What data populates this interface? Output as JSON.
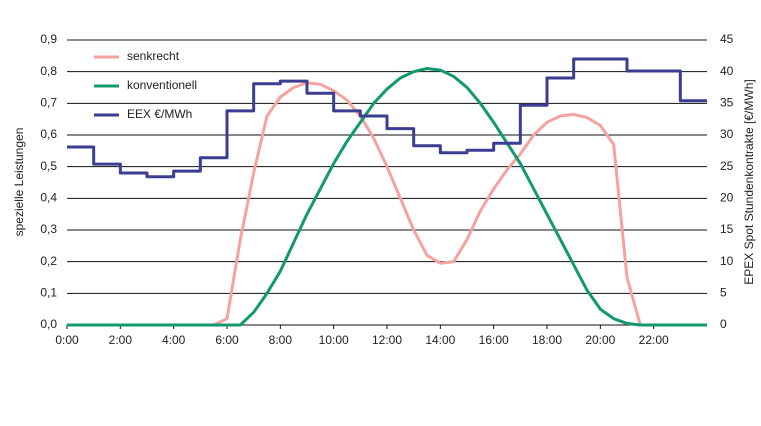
{
  "chart_data": {
    "type": "line",
    "ylabel": "spezielle Leistungen",
    "y2label": "EPEX Spot Stundenkontrakte [€/MWh]",
    "xlim": [
      0,
      24
    ],
    "xticks": [
      {
        "value": 0,
        "label": "0:00"
      },
      {
        "value": 2,
        "label": "2:00"
      },
      {
        "value": 4,
        "label": "4:00"
      },
      {
        "value": 6,
        "label": "6:00"
      },
      {
        "value": 8,
        "label": "8:00"
      },
      {
        "value": 10,
        "label": "10:00"
      },
      {
        "value": 12,
        "label": "12:00"
      },
      {
        "value": 14,
        "label": "14:00"
      },
      {
        "value": 16,
        "label": "16:00"
      },
      {
        "value": 18,
        "label": "18:00"
      },
      {
        "value": 20,
        "label": "20:00"
      },
      {
        "value": 22,
        "label": "22:00"
      }
    ],
    "ylim": [
      0,
      0.9
    ],
    "yticks": [
      {
        "value": 0,
        "label": "0,0"
      },
      {
        "value": 0.1,
        "label": "0,1"
      },
      {
        "value": 0.2,
        "label": "0,2"
      },
      {
        "value": 0.3,
        "label": "0,3"
      },
      {
        "value": 0.4,
        "label": "0,4"
      },
      {
        "value": 0.5,
        "label": "0,5"
      },
      {
        "value": 0.6,
        "label": "0,6"
      },
      {
        "value": 0.7,
        "label": "0,7"
      },
      {
        "value": 0.8,
        "label": "0,8"
      },
      {
        "value": 0.9,
        "label": "0,9"
      }
    ],
    "y2lim": [
      0,
      45
    ],
    "y2ticks": [
      0,
      5,
      10,
      15,
      20,
      25,
      30,
      35,
      40,
      45
    ],
    "grid": true,
    "legend": "upper left",
    "series": [
      {
        "name": "senkrecht",
        "color": "#f4a3a0",
        "x": [
          0,
          0.5,
          1,
          1.5,
          2,
          2.5,
          3,
          3.5,
          4,
          4.5,
          5,
          5.5,
          6,
          6.5,
          7,
          7.5,
          8,
          8.5,
          9,
          9.5,
          10,
          10.5,
          11,
          11.5,
          12,
          12.5,
          13,
          13.5,
          14,
          14.5,
          15,
          15.5,
          16,
          16.5,
          17,
          17.5,
          18,
          18.5,
          19,
          19.5,
          20,
          20.5,
          21,
          21.5,
          22,
          22.5,
          23,
          23.5,
          24
        ],
        "values": [
          0,
          0,
          0,
          0,
          0,
          0,
          0,
          0,
          0,
          0,
          0,
          0,
          0.02,
          0.27,
          0.48,
          0.66,
          0.72,
          0.75,
          0.765,
          0.76,
          0.74,
          0.71,
          0.66,
          0.59,
          0.5,
          0.4,
          0.3,
          0.22,
          0.195,
          0.2,
          0.27,
          0.36,
          0.43,
          0.49,
          0.54,
          0.6,
          0.64,
          0.66,
          0.665,
          0.655,
          0.63,
          0.57,
          0.15,
          0,
          0,
          0,
          0,
          0,
          0
        ]
      },
      {
        "name": "konventionell",
        "color": "#12996f",
        "x": [
          0,
          0.5,
          1,
          1.5,
          2,
          2.5,
          3,
          3.5,
          4,
          4.5,
          5,
          5.5,
          6,
          6.5,
          7,
          7.5,
          8,
          8.5,
          9,
          9.5,
          10,
          10.5,
          11,
          11.5,
          12,
          12.5,
          13,
          13.5,
          14,
          14.5,
          15,
          15.5,
          16,
          16.5,
          17,
          17.5,
          18,
          18.5,
          19,
          19.5,
          20,
          20.5,
          21,
          21.5,
          22,
          22.5,
          23,
          23.5,
          24
        ],
        "values": [
          0,
          0,
          0,
          0,
          0,
          0,
          0,
          0,
          0,
          0,
          0,
          0,
          0,
          0,
          0.04,
          0.1,
          0.17,
          0.26,
          0.35,
          0.43,
          0.51,
          0.58,
          0.64,
          0.7,
          0.745,
          0.78,
          0.8,
          0.81,
          0.805,
          0.785,
          0.75,
          0.7,
          0.64,
          0.575,
          0.51,
          0.43,
          0.35,
          0.27,
          0.19,
          0.11,
          0.05,
          0.02,
          0.005,
          0,
          0,
          0,
          0,
          0,
          0
        ]
      },
      {
        "name": "EEX €/MWh",
        "color": "#3a3d91",
        "axis": "y2",
        "x": [
          0,
          1,
          1,
          2,
          2,
          3,
          3,
          4,
          4,
          5,
          5,
          6,
          6,
          7,
          7,
          8,
          8,
          9,
          9,
          10,
          10,
          11,
          11,
          12,
          12,
          13,
          13,
          14,
          14,
          15,
          15,
          16,
          16,
          17,
          17,
          18,
          18,
          19,
          19,
          20,
          20,
          21,
          21,
          22,
          22,
          23,
          23,
          24
        ],
        "values": [
          28.1,
          28.1,
          25.4,
          25.4,
          24.0,
          24.0,
          23.4,
          23.4,
          24.3,
          24.3,
          26.4,
          26.4,
          33.8,
          33.8,
          38.1,
          38.1,
          38.5,
          38.5,
          36.6,
          36.6,
          33.8,
          33.8,
          33.0,
          33.0,
          31.0,
          31.0,
          28.3,
          28.3,
          27.2,
          27.2,
          27.6,
          27.6,
          28.7,
          28.7,
          34.7,
          34.7,
          39.0,
          39.0,
          42.0,
          42.0,
          42.0,
          42.0,
          40.1,
          40.1,
          40.1,
          40.1,
          35.4,
          35.4
        ]
      }
    ]
  }
}
